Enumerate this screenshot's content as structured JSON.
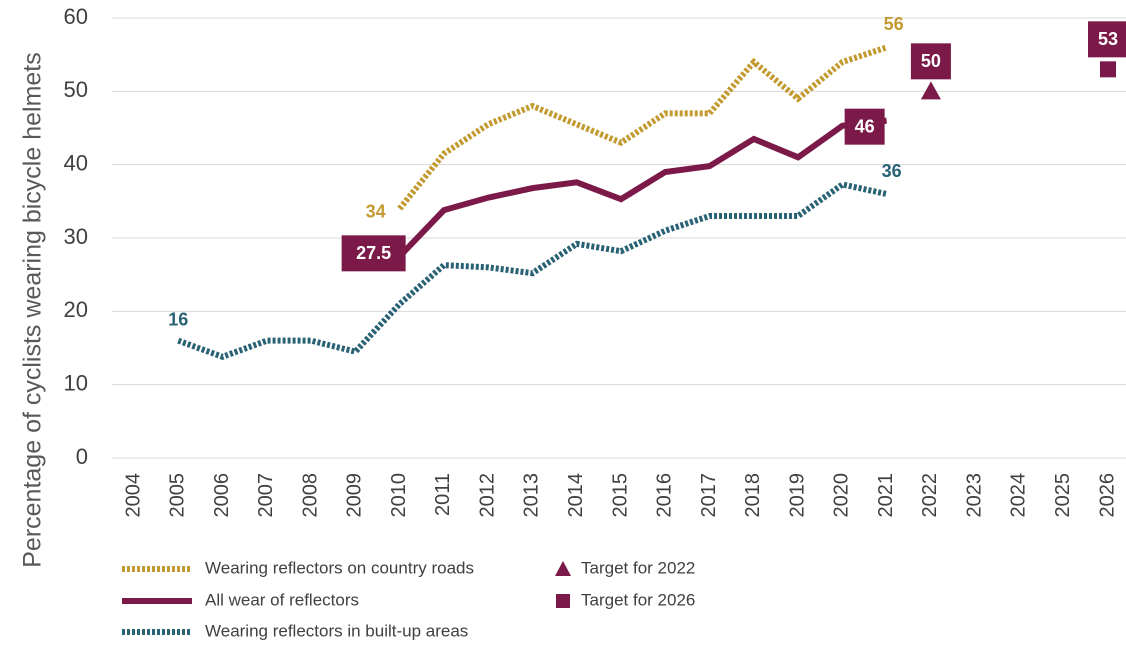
{
  "chart_data": {
    "type": "line",
    "y_label": "Percentage of cyclists wearing bicycle helmets",
    "categories": [
      "2004",
      "2005",
      "2006",
      "2007",
      "2008",
      "2009",
      "2010",
      "2011",
      "2012",
      "2013",
      "2014",
      "2015",
      "2016",
      "2017",
      "2018",
      "2019",
      "2020",
      "2021",
      "2022",
      "2023",
      "2024",
      "2025",
      "2026"
    ],
    "ylim": [
      0,
      60
    ],
    "yticks": [
      0,
      10,
      20,
      30,
      40,
      50,
      60
    ],
    "grid": true,
    "series": [
      {
        "name": "Wearing reflectors on country roads",
        "color": "#c29a30",
        "style": "dotted",
        "values": [
          null,
          null,
          null,
          null,
          null,
          null,
          34,
          41.5,
          45.5,
          48,
          45.5,
          43,
          47,
          47,
          54,
          49,
          54,
          56,
          null,
          null,
          null,
          null,
          null
        ],
        "value_labels": [
          null,
          null,
          null,
          null,
          null,
          null,
          "34",
          null,
          null,
          null,
          null,
          null,
          null,
          null,
          null,
          null,
          null,
          "56",
          null,
          null,
          null,
          null,
          null
        ]
      },
      {
        "name": "All wear of reflectors",
        "color": "#7b1a48",
        "style": "solid",
        "values": [
          null,
          null,
          null,
          null,
          null,
          null,
          27.5,
          33.8,
          35.5,
          36.8,
          37.6,
          35.3,
          39,
          39.8,
          43.5,
          41,
          45.3,
          46,
          null,
          null,
          null,
          null,
          null
        ],
        "value_labels": [
          null,
          null,
          null,
          null,
          null,
          null,
          "27.5",
          null,
          null,
          null,
          null,
          null,
          null,
          null,
          null,
          null,
          null,
          "46",
          null,
          null,
          null,
          null,
          null
        ]
      },
      {
        "name": "Wearing reflectors in built-up areas",
        "color": "#2a6275",
        "style": "dotted",
        "values": [
          null,
          16,
          13.8,
          16,
          16,
          14.5,
          21,
          26.3,
          26,
          25.2,
          29.2,
          28.2,
          31,
          33,
          33,
          33,
          37.3,
          36,
          null,
          null,
          null,
          null,
          null
        ],
        "value_labels": [
          null,
          "16",
          null,
          null,
          null,
          null,
          null,
          null,
          null,
          null,
          null,
          null,
          null,
          null,
          null,
          null,
          null,
          "36",
          null,
          null,
          null,
          null,
          null
        ]
      },
      {
        "name": "Target for 2022",
        "color": "#7b1a48",
        "marker": "triangle",
        "values": [
          null,
          null,
          null,
          null,
          null,
          null,
          null,
          null,
          null,
          null,
          null,
          null,
          null,
          null,
          null,
          null,
          null,
          null,
          50,
          null,
          null,
          null,
          null
        ],
        "value_labels": [
          null,
          null,
          null,
          null,
          null,
          null,
          null,
          null,
          null,
          null,
          null,
          null,
          null,
          null,
          null,
          null,
          null,
          null,
          "50",
          null,
          null,
          null,
          null
        ]
      },
      {
        "name": "Target for 2026",
        "color": "#7b1a48",
        "marker": "square",
        "values": [
          null,
          null,
          null,
          null,
          null,
          null,
          null,
          null,
          null,
          null,
          null,
          null,
          null,
          null,
          null,
          null,
          null,
          null,
          null,
          null,
          null,
          null,
          53
        ],
        "value_labels": [
          null,
          null,
          null,
          null,
          null,
          null,
          null,
          null,
          null,
          null,
          null,
          null,
          null,
          null,
          null,
          null,
          null,
          null,
          null,
          null,
          null,
          null,
          "53"
        ]
      }
    ]
  }
}
